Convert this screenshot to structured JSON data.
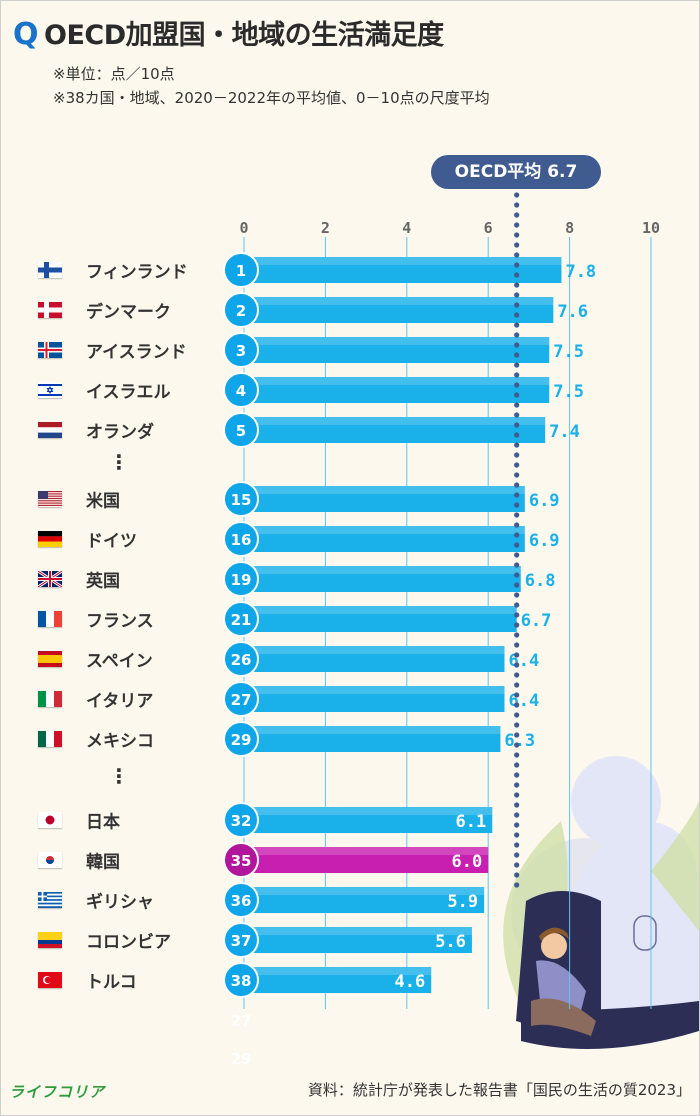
{
  "header": {
    "q": "Q",
    "title": "OECD加盟国・地域の生活満足度",
    "note1": "※単位：点／10点",
    "note2": "※38カ国・地域、2020－2022年の平均値、0－10点の尺度平均"
  },
  "average": {
    "label": "OECD平均 6.7",
    "value": 6.7,
    "color": "#3f5b8f"
  },
  "chart_data": {
    "type": "bar",
    "orientation": "horizontal",
    "xlim": [
      0,
      10
    ],
    "ticks": [
      "0",
      "2",
      "4",
      "6",
      "8",
      "10"
    ],
    "grid": true,
    "colors": {
      "bar": "#1ab0ea",
      "highlight": "#c91fb0"
    },
    "rows": [
      {
        "country": "フィンランド",
        "rank": "1",
        "value": 7.8,
        "label": "7.8",
        "flag": "finland"
      },
      {
        "country": "デンマーク",
        "rank": "2",
        "value": 7.6,
        "label": "7.6",
        "flag": "denmark"
      },
      {
        "country": "アイスランド",
        "rank": "3",
        "value": 7.5,
        "label": "7.5",
        "flag": "iceland"
      },
      {
        "country": "イスラエル",
        "rank": "4",
        "value": 7.5,
        "label": "7.5",
        "flag": "israel"
      },
      {
        "country": "オランダ",
        "rank": "5",
        "value": 7.4,
        "label": "7.4",
        "flag": "netherlands"
      },
      {
        "gap": true,
        "text": "⋮"
      },
      {
        "country": "米国",
        "rank": "15",
        "value": 6.9,
        "label": "6.9",
        "flag": "usa"
      },
      {
        "country": "ドイツ",
        "rank": "16",
        "value": 6.9,
        "label": "6.9",
        "flag": "germany"
      },
      {
        "country": "英国",
        "rank": "19",
        "value": 6.8,
        "label": "6.8",
        "flag": "uk"
      },
      {
        "country": "フランス",
        "rank": "21",
        "value": 6.7,
        "label": "6.7",
        "flag": "france"
      },
      {
        "country": "スペイン",
        "rank": "26",
        "value": 6.4,
        "label": "6.4",
        "flag": "spain"
      },
      {
        "country": "イタリア",
        "rank": "27",
        "value": 6.4,
        "label": "6.4",
        "flag": "italy"
      },
      {
        "country": "メキシコ",
        "rank": "29",
        "value": 6.3,
        "label": "6.3",
        "flag": "mexico"
      },
      {
        "gap": true,
        "text": "⋮"
      },
      {
        "country": "日本",
        "rank": "32",
        "value": 6.1,
        "label": "6.1",
        "flag": "japan"
      },
      {
        "country": "韓国",
        "rank": "35",
        "value": 6.0,
        "label": "6.0",
        "flag": "korea",
        "highlight": true
      },
      {
        "country": "ギリシャ",
        "rank": "36",
        "value": 5.9,
        "label": "5.9",
        "flag": "greece"
      },
      {
        "country": "コロンビア",
        "rank": "37",
        "value": 5.6,
        "label": "5.6",
        "flag": "colombia"
      },
      {
        "country": "トルコ",
        "rank": "38",
        "value": 4.6,
        "label": "4.6",
        "flag": "turkey"
      }
    ],
    "ghost_labels": [
      "27",
      "29"
    ]
  },
  "footer": {
    "logo": "ライフコリア",
    "source": "資料：統計庁が発表した報告書「国民の生活の質2023」"
  }
}
